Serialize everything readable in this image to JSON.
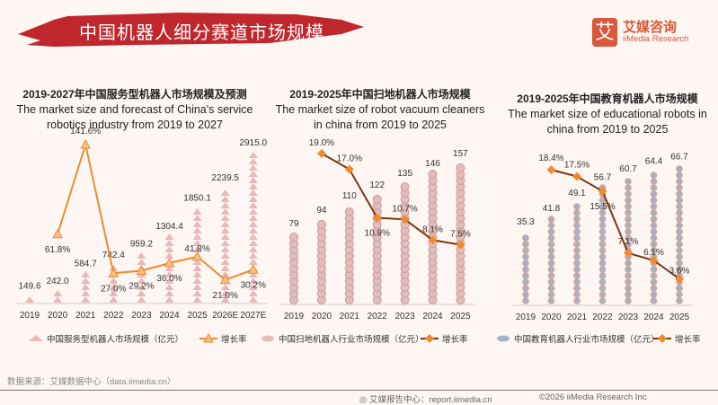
{
  "header": {
    "title": "中国机器人细分赛道市场规模",
    "logo_glyph": "艾",
    "logo_cn": "艾媒咨询",
    "logo_en": "iiMedia Research",
    "accent": "#c0272d"
  },
  "footer": {
    "source": "数据来源：艾媒数据中心（data.iimedia.cn）",
    "report": "艾媒报告中心：report.iimedia.cn",
    "copyright": "©2026  iiMedia Research  Inc"
  },
  "chart_data": [
    {
      "type": "bar+line",
      "title_cn": "2019-2027年中国服务型机器人市场规模及预测",
      "title_en": "The market size and forecast of China's service robotics industry from 2019 to 2027",
      "categories": [
        "2019",
        "2020",
        "2021",
        "2022",
        "2023",
        "2024",
        "2025",
        "2026E",
        "2027E"
      ],
      "series": [
        {
          "name": "中国服务型机器人市场规模（亿元）",
          "type": "bar",
          "values": [
            149.6,
            242.0,
            584.7,
            742.4,
            959.2,
            1304.4,
            1850.1,
            2239.5,
            2915.0
          ],
          "labels": [
            "149.6",
            "242.0",
            "584.7",
            "742.4",
            "959.2",
            "1304.4",
            "1850.1",
            "2239.5",
            "2915.0"
          ],
          "color": "#eab7b7"
        },
        {
          "name": "增长率",
          "type": "line",
          "values": [
            null,
            61.8,
            141.6,
            27.0,
            29.2,
            36.0,
            41.8,
            21.0,
            30.2
          ],
          "labels": [
            "",
            "61.8%",
            "141.6%",
            "27.0%",
            "29.2%",
            "36.0%",
            "41.8%",
            "21.0%",
            "30.2%"
          ],
          "color": "#f08a2c",
          "marker": "triangle"
        }
      ]
    },
    {
      "type": "bar+line",
      "title_cn": "2019-2025年中国扫地机器人市场规模",
      "title_en": "The market size of robot vacuum cleaners in china from 2019 to 2025",
      "categories": [
        "2019",
        "2020",
        "2021",
        "2022",
        "2023",
        "2024",
        "2025"
      ],
      "series": [
        {
          "name": "中国扫地机器人行业市场规模（亿元）",
          "type": "bar",
          "values": [
            79,
            94,
            110,
            122,
            135,
            146,
            157
          ],
          "labels": [
            "79",
            "94",
            "110",
            "122",
            "135",
            "146",
            "157"
          ],
          "color": "#e6c4c4"
        },
        {
          "name": "增长率",
          "type": "line",
          "values": [
            null,
            19.0,
            17.0,
            10.9,
            10.7,
            8.1,
            7.5
          ],
          "labels": [
            "",
            "19.0%",
            "17.0%",
            "10.9%",
            "10.7%",
            "8.1%",
            "7.5%"
          ],
          "color": "#7a3510",
          "marker": "diamond",
          "marker_color": "#f08a2c"
        }
      ]
    },
    {
      "type": "bar+line",
      "title_cn": "2019-2025年中国教育机器人市场规模",
      "title_en": "The market size of educational robots in china from 2019 to 2025",
      "categories": [
        "2019",
        "2020",
        "2021",
        "2022",
        "2023",
        "2024",
        "2025"
      ],
      "series": [
        {
          "name": "中国教育机器人行业市场规模（亿元）",
          "type": "bar",
          "values": [
            35.3,
            41.8,
            49.1,
            56.7,
            60.7,
            64.4,
            66.7
          ],
          "labels": [
            "35.3",
            "41.8",
            "49.1",
            "56.7",
            "60.7",
            "64.4",
            "66.7"
          ],
          "color": "#9fb4c8"
        },
        {
          "name": "增长率",
          "type": "line",
          "values": [
            null,
            18.4,
            17.5,
            15.5,
            7.1,
            6.1,
            3.6
          ],
          "labels": [
            "",
            "18.4%",
            "17.5%",
            "15.5%",
            "7.1%",
            "6.1%",
            "3.6%"
          ],
          "color": "#7a3510",
          "marker": "diamond",
          "marker_color": "#f08a2c"
        }
      ]
    }
  ]
}
